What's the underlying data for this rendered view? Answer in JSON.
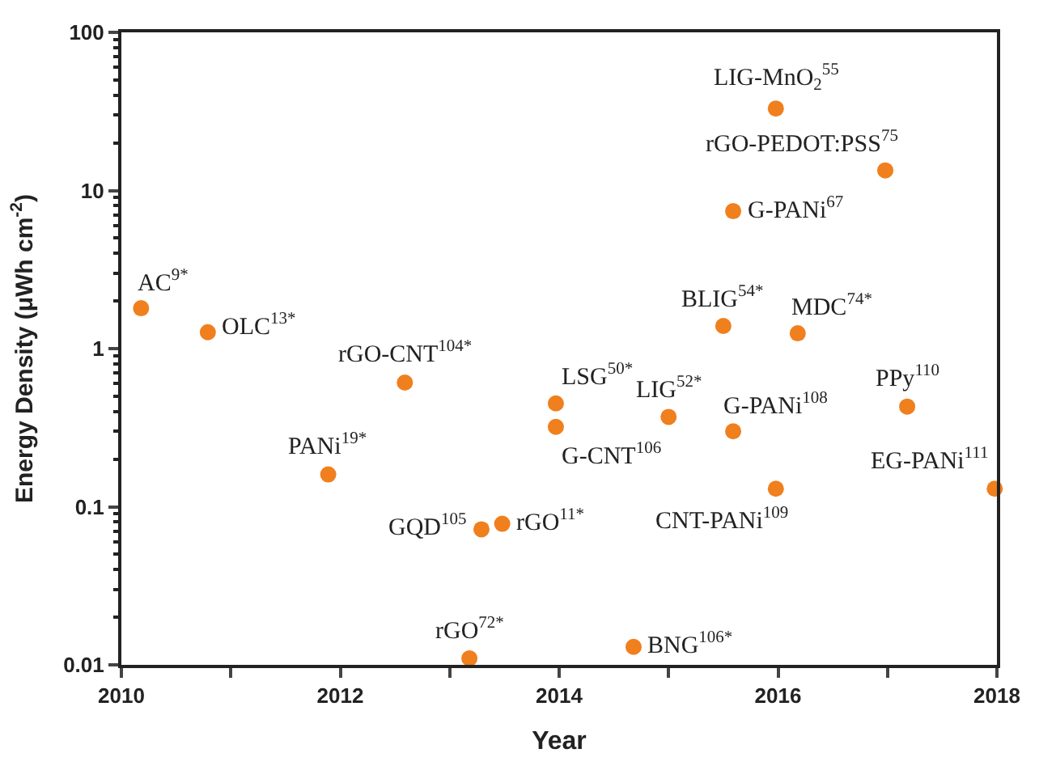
{
  "chart_data": {
    "type": "scatter",
    "xlabel": "Year",
    "ylabel": "Energy Density (μWh cm$^{-2}$)",
    "x": [
      2010.18,
      2010.79,
      2012.59,
      2011.89,
      2013.97,
      2013.97,
      2013.29,
      2013.48,
      2013.18,
      2014.68,
      2015.98,
      2016.98,
      2015.59,
      2015.5,
      2016.18,
      2015.0,
      2015.59,
      2017.18,
      2017.98,
      2015.98
    ],
    "series": [
      {
        "color": "#f07f1e",
        "values": [
          1.8,
          1.27,
          0.61,
          0.16,
          0.45,
          0.32,
          0.072,
          0.078,
          0.011,
          0.013,
          33,
          13.4,
          7.4,
          1.39,
          1.25,
          0.37,
          0.3,
          0.43,
          0.13,
          0.13
        ]
      }
    ],
    "annotations": [
      {
        "text": "AC$^{9*}$",
        "x": 2010.18,
        "y": 1.8
      },
      {
        "text": "OLC$^{13*}$",
        "x": 2010.79,
        "y": 1.27
      },
      {
        "text": "rGO-CNT$^{104*}$",
        "x": 2012.59,
        "y": 0.61
      },
      {
        "text": "PANi$^{19*}$",
        "x": 2011.89,
        "y": 0.16
      },
      {
        "text": "LSG$^{50*}$",
        "x": 2013.97,
        "y": 0.45
      },
      {
        "text": "G-CNT$^{106}$",
        "x": 2013.97,
        "y": 0.32
      },
      {
        "text": "GQD$^{105}$",
        "x": 2013.29,
        "y": 0.072
      },
      {
        "text": "rGO$^{11*}$",
        "x": 2013.48,
        "y": 0.078
      },
      {
        "text": "rGO$^{72*}$",
        "x": 2013.18,
        "y": 0.011
      },
      {
        "text": "BNG$^{106*}$",
        "x": 2014.68,
        "y": 0.013
      },
      {
        "text": "LIG-MnO$_{2}$$^{55}$",
        "x": 2015.98,
        "y": 33
      },
      {
        "text": "rGO-PEDOT:PSS$^{75}$",
        "x": 2016.98,
        "y": 13.4
      },
      {
        "text": "G-PANi$^{67}$",
        "x": 2015.59,
        "y": 7.4
      },
      {
        "text": "BLIG$^{54*}$",
        "x": 2015.5,
        "y": 1.39
      },
      {
        "text": "MDC$^{74*}$",
        "x": 2016.18,
        "y": 1.25
      },
      {
        "text": "LIG$^{52*}$",
        "x": 2015.0,
        "y": 0.37
      },
      {
        "text": "G-PANi$^{108}$",
        "x": 2015.59,
        "y": 0.3
      },
      {
        "text": "PPy$^{110}$",
        "x": 2017.18,
        "y": 0.43
      },
      {
        "text": "EG-PANi$^{111}$",
        "x": 2017.98,
        "y": 0.13
      },
      {
        "text": "CNT-PANi$^{109}$",
        "x": 2015.98,
        "y": 0.13
      }
    ],
    "xlim": [
      2010,
      2018
    ],
    "xticks": [
      2010,
      {
        "value": 2011,
        "label": null
      },
      2012,
      {
        "value": 2013,
        "label": null
      },
      2014,
      {
        "value": 2015,
        "label": null
      },
      2016,
      {
        "value": 2017,
        "label": null
      },
      2018
    ],
    "log": true,
    "ylim": [
      0.01,
      100
    ],
    "yticks": [
      0.01,
      0.1,
      1,
      10,
      100
    ],
    "marker": "circle"
  }
}
